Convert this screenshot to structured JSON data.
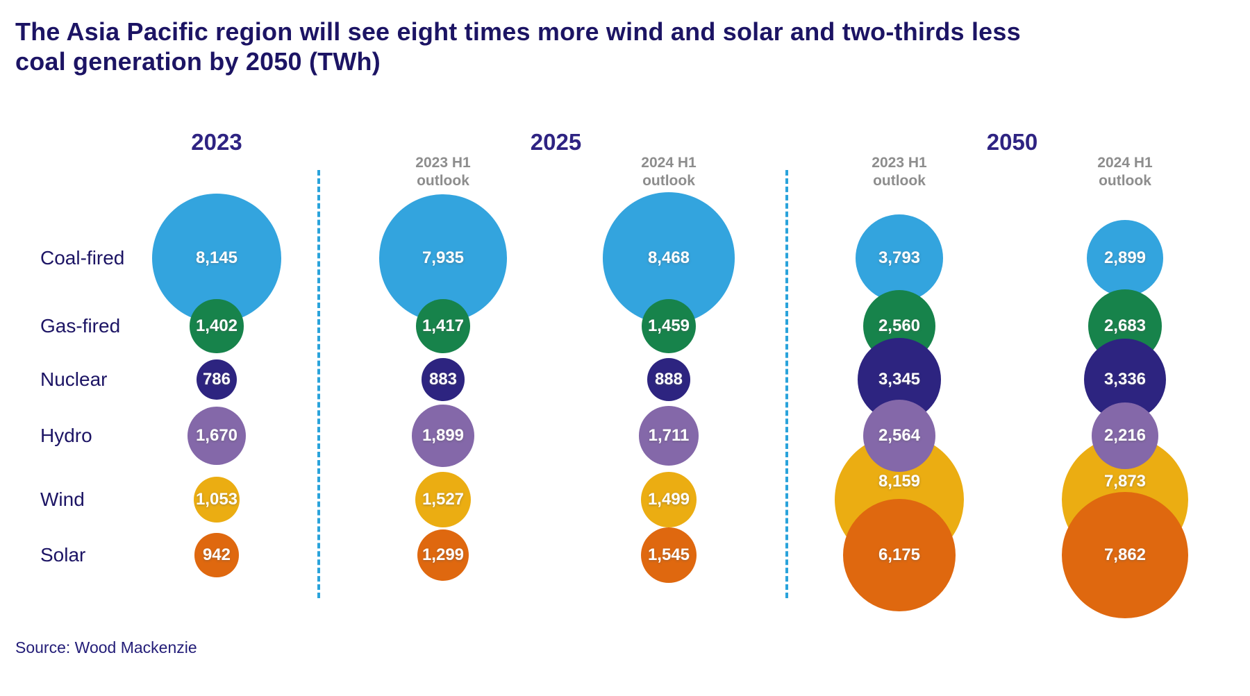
{
  "title": "The Asia Pacific region will see eight times more wind and solar and two-thirds less coal generation by 2050 (TWh)",
  "source": "Source: Wood Mackenzie",
  "colors": {
    "title_text": "#1c1464",
    "year_header_text": "#2e2382",
    "outlook_header_text": "#8d8d8d",
    "separator_line": "#2aa3db",
    "bubble_value_text": "#ffffff"
  },
  "chart_data": {
    "type": "bubble",
    "unit": "TWh",
    "title": "The Asia Pacific region will see eight times more wind and solar and two-thirds less coal generation by 2050 (TWh)",
    "categories": [
      "Coal-fired",
      "Gas-fired",
      "Nuclear",
      "Hydro",
      "Wind",
      "Solar"
    ],
    "category_colors": [
      "#33a4de",
      "#17834b",
      "#2d2480",
      "#8468a9",
      "#ebad12",
      "#df680f"
    ],
    "groups": [
      "2023",
      "2025",
      "2050"
    ],
    "series": [
      {
        "group": "2023",
        "outlook": [],
        "values": [
          8145,
          1402,
          786,
          1670,
          1053,
          942
        ]
      },
      {
        "group": "2025",
        "outlook": [
          "2023 H1",
          "outlook"
        ],
        "values": [
          7935,
          1417,
          883,
          1899,
          1527,
          1299
        ]
      },
      {
        "group": "2025",
        "outlook": [
          "2024 H1",
          "outlook"
        ],
        "values": [
          8468,
          1459,
          888,
          1711,
          1499,
          1545
        ]
      },
      {
        "group": "2050",
        "outlook": [
          "2023 H1",
          "outlook"
        ],
        "values": [
          3793,
          2560,
          3345,
          2564,
          8159,
          6175
        ]
      },
      {
        "group": "2050",
        "outlook": [
          "2024 H1",
          "outlook"
        ],
        "values": [
          2899,
          2683,
          3336,
          2216,
          7873,
          7862
        ]
      }
    ],
    "layout_hints": {
      "bubble_area": "proportional to value",
      "value_labels": "inside bubbles, white bold",
      "group_separators": "vertical dashed lines between year groups",
      "legend": "row labels on left"
    }
  }
}
